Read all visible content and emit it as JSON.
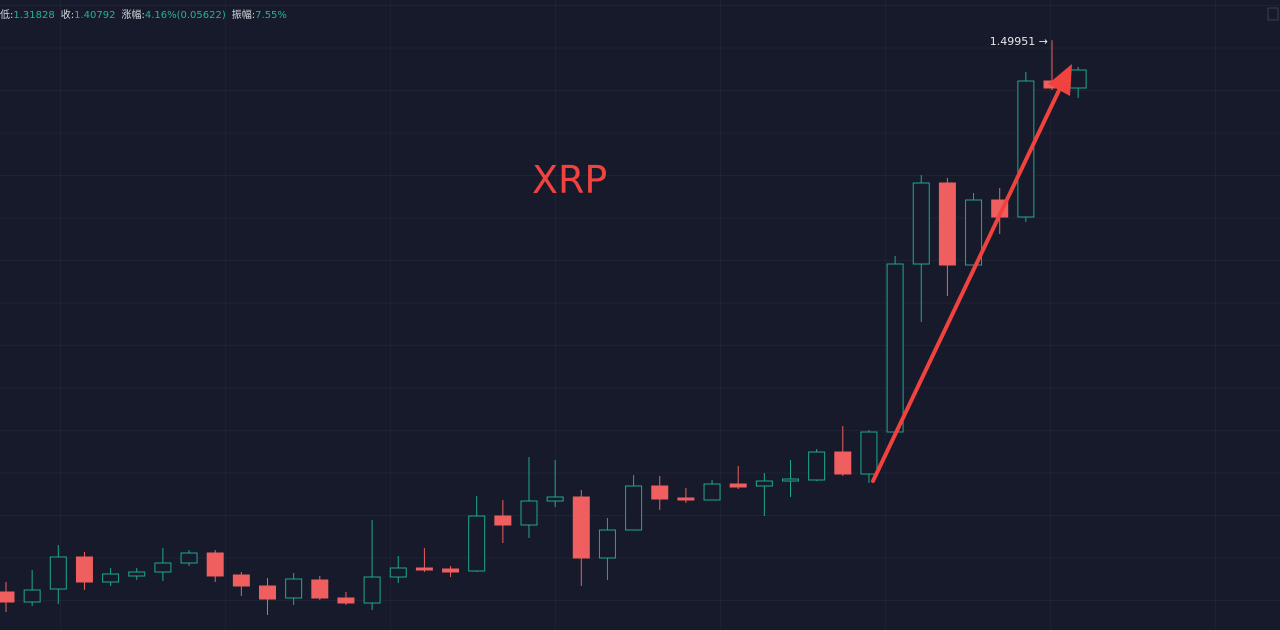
{
  "chart_data": {
    "type": "candlestick",
    "title": "XRP",
    "header": [
      {
        "label": "低:",
        "value": "1.31828"
      },
      {
        "label": "收:",
        "value": "1.40792"
      },
      {
        "label": "涨幅:",
        "value": "4.16%(0.05622)"
      },
      {
        "label": "振幅:",
        "value": "7.55%"
      }
    ],
    "high_annotation": "1.49951 →",
    "high_index": 40,
    "up_color": "#1fa88f",
    "down_color": "#ef5f5f",
    "ylim": [
      0.32,
      1.58
    ],
    "series": [
      {
        "name": "open",
        "values": [
          0.396,
          0.376,
          0.402,
          0.466,
          0.416,
          0.428,
          0.436,
          0.454,
          0.474,
          0.43,
          0.408,
          0.384,
          0.42,
          0.384,
          0.374,
          0.426,
          0.444,
          0.442,
          0.438,
          0.548,
          0.53,
          0.578,
          0.586,
          0.464,
          0.52,
          0.608,
          0.584,
          0.58,
          0.612,
          0.608,
          0.618,
          0.62,
          0.676,
          0.632,
          0.716,
          1.052,
          1.214,
          1.05,
          1.18,
          1.146,
          1.418,
          1.404
        ]
      },
      {
        "name": "high",
        "values": [
          0.416,
          0.44,
          0.49,
          0.476,
          0.444,
          0.444,
          0.484,
          0.48,
          0.48,
          0.436,
          0.424,
          0.434,
          0.428,
          0.396,
          0.54,
          0.468,
          0.484,
          0.448,
          0.588,
          0.58,
          0.666,
          0.66,
          0.6,
          0.544,
          0.63,
          0.628,
          0.604,
          0.62,
          0.648,
          0.634,
          0.66,
          0.682,
          0.728,
          0.72,
          1.068,
          1.23,
          1.224,
          1.194,
          1.204,
          1.436,
          1.49951,
          1.446
        ]
      },
      {
        "name": "low",
        "values": [
          0.356,
          0.368,
          0.372,
          0.4,
          0.408,
          0.42,
          0.418,
          0.448,
          0.416,
          0.388,
          0.35,
          0.37,
          0.38,
          0.37,
          0.36,
          0.414,
          0.436,
          0.426,
          0.436,
          0.494,
          0.504,
          0.566,
          0.408,
          0.42,
          0.52,
          0.56,
          0.574,
          0.58,
          0.602,
          0.548,
          0.586,
          0.618,
          0.628,
          0.614,
          0.712,
          0.936,
          0.988,
          1.05,
          1.112,
          1.136,
          1.4,
          1.384
        ]
      },
      {
        "name": "close",
        "values": [
          0.376,
          0.4,
          0.466,
          0.416,
          0.432,
          0.436,
          0.454,
          0.474,
          0.428,
          0.408,
          0.382,
          0.422,
          0.384,
          0.374,
          0.426,
          0.444,
          0.44,
          0.436,
          0.548,
          0.53,
          0.578,
          0.586,
          0.464,
          0.52,
          0.608,
          0.582,
          0.58,
          0.612,
          0.606,
          0.618,
          0.622,
          0.676,
          0.632,
          0.716,
          1.052,
          1.214,
          1.05,
          1.18,
          1.146,
          1.418,
          1.404,
          1.44
        ]
      }
    ]
  }
}
